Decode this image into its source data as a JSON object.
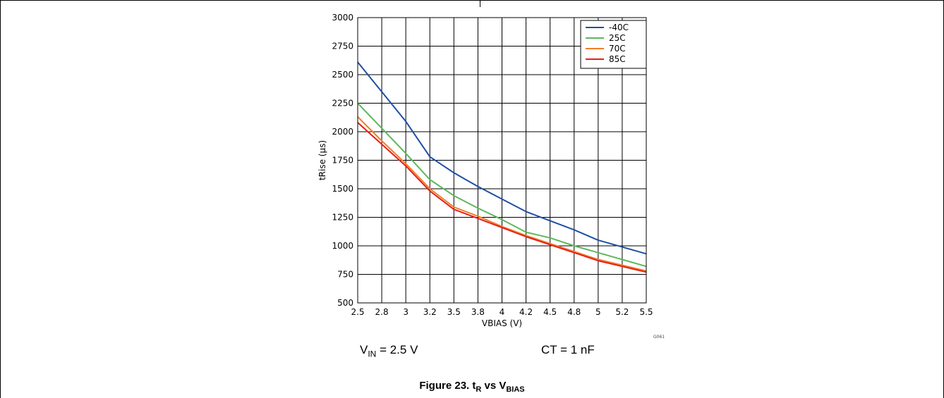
{
  "conditions": {
    "vin": {
      "main": "V",
      "sub": "IN",
      "rest": " = 2.5 V"
    },
    "ct": "CT = 1 nF"
  },
  "caption": {
    "prefix": "Figure 23. t",
    "t_sub": "R",
    "mid": " vs V",
    "v_sub": "BIAS"
  },
  "chart_data": {
    "type": "line",
    "xlabel": "VBIAS (V)",
    "ylabel": "tRise (µs)",
    "xlim": [
      2.5,
      5.5
    ],
    "ylim": [
      500,
      3000
    ],
    "x_ticks": [
      2.5,
      2.75,
      3,
      3.25,
      3.5,
      3.75,
      4,
      4.25,
      4.5,
      4.75,
      5,
      5.25,
      5.5
    ],
    "x_tick_labels": [
      "2.5",
      "2.8",
      "3",
      "3.2",
      "3.5",
      "3.8",
      "4",
      "4.2",
      "4.5",
      "4.8",
      "5",
      "5.2",
      "5.5"
    ],
    "y_ticks": [
      500,
      750,
      1000,
      1250,
      1500,
      1750,
      2000,
      2250,
      2500,
      2750,
      3000
    ],
    "y_tick_labels": [
      "500",
      "750",
      "1000",
      "1250",
      "1500",
      "1750",
      "2000",
      "2250",
      "2500",
      "2750",
      "3000"
    ],
    "grid": true,
    "legend_position": "top-right",
    "figure_code": "G061",
    "x": [
      2.5,
      2.75,
      3,
      3.25,
      3.5,
      3.75,
      4,
      4.25,
      4.5,
      4.75,
      5,
      5.25,
      5.5
    ],
    "series": [
      {
        "name": "-40C",
        "color": "#1f4ea3",
        "values": [
          2610,
          2350,
          2090,
          1780,
          1640,
          1520,
          1410,
          1300,
          1220,
          1140,
          1050,
          990,
          930
        ]
      },
      {
        "name": "25C",
        "color": "#5cb85c",
        "values": [
          2250,
          2030,
          1810,
          1580,
          1440,
          1330,
          1230,
          1120,
          1070,
          1000,
          940,
          880,
          820
        ]
      },
      {
        "name": "70C",
        "color": "#f07f2a",
        "values": [
          2130,
          1920,
          1720,
          1500,
          1340,
          1260,
          1170,
          1090,
          1020,
          950,
          880,
          830,
          780
        ]
      },
      {
        "name": "85C",
        "color": "#e32119",
        "values": [
          2080,
          1890,
          1700,
          1480,
          1320,
          1240,
          1160,
          1080,
          1010,
          940,
          870,
          820,
          770
        ]
      }
    ]
  }
}
